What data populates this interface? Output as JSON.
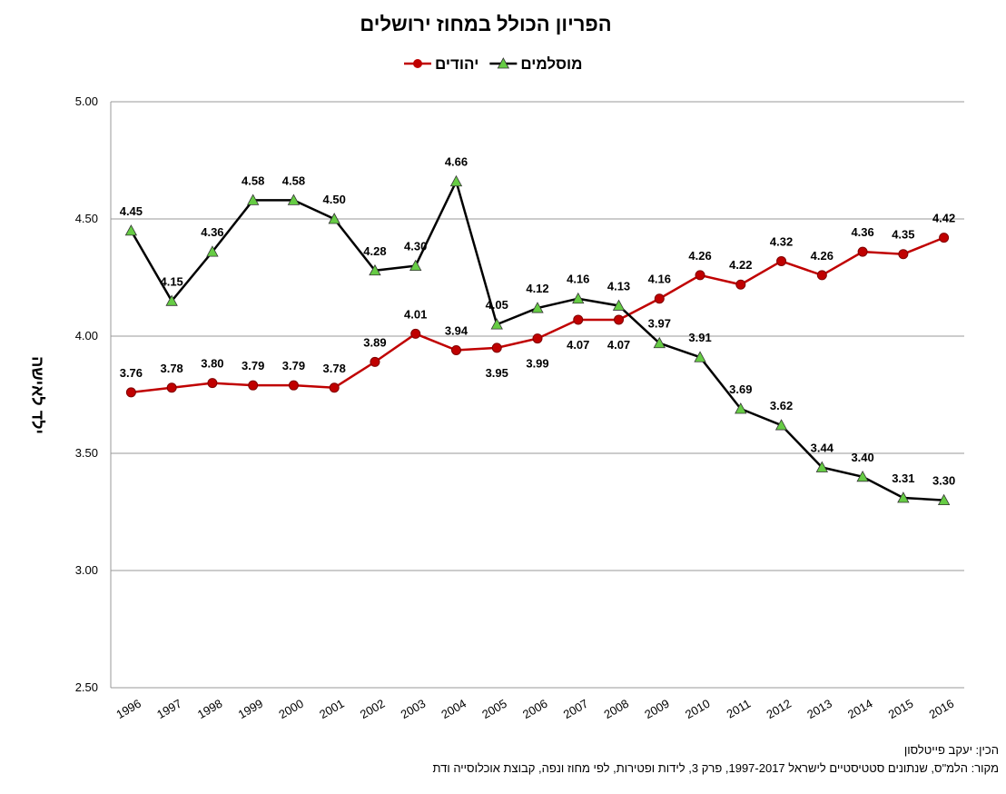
{
  "chart_data": {
    "type": "line",
    "title": "הפריון הכולל במחוז ירושלים",
    "y_label": "ילד לאישה",
    "credit": "הכין: יעקב פייטלסון",
    "source": "מקור: הלמ\"ס, שנתונים סטטיסטיים לישראל 1997-2017, פרק 3, לידות ופטירות, לפי מחוז ונפה, קבוצת אוכלוסייה ודת",
    "categories": [
      "1996",
      "1997",
      "1998",
      "1999",
      "2000",
      "2001",
      "2002",
      "2003",
      "2004",
      "2005",
      "2006",
      "2007",
      "2008",
      "2009",
      "2010",
      "2011",
      "2012",
      "2013",
      "2014",
      "2015",
      "2016"
    ],
    "series": [
      {
        "name": "יהודים",
        "color": "#c00000",
        "marker": "circle",
        "marker_color": "#c00000",
        "values": [
          3.76,
          3.78,
          3.8,
          3.79,
          3.79,
          3.78,
          3.89,
          4.01,
          3.94,
          3.95,
          3.99,
          4.07,
          4.07,
          4.16,
          4.26,
          4.22,
          4.32,
          4.26,
          4.36,
          4.35,
          4.42
        ],
        "value_labels": [
          "3.76",
          "3.78",
          "3.80",
          "3.79",
          "3.79",
          "3.78",
          "3.89",
          "4.01",
          "3.94",
          "3.95",
          "3.99",
          "4.07",
          "4.07",
          "4.16",
          "4.26",
          "4.22",
          "4.32",
          "4.26",
          "4.36",
          "4.35",
          "4.42"
        ]
      },
      {
        "name": "מוסלמים",
        "color": "#000000",
        "marker": "triangle",
        "marker_color": "#66cc44",
        "values": [
          4.45,
          4.15,
          4.36,
          4.58,
          4.58,
          4.5,
          4.28,
          4.3,
          4.66,
          4.05,
          4.12,
          4.16,
          4.13,
          3.97,
          3.91,
          3.69,
          3.62,
          3.44,
          3.4,
          3.31,
          3.3
        ],
        "value_labels": [
          "4.45",
          "4.15",
          "4.36",
          "4.58",
          "4.58",
          "4.50",
          "4.28",
          "4.30",
          "4.66",
          "4.05",
          "4.12",
          "4.16",
          "4.13",
          "3.97",
          "3.91",
          "3.69",
          "3.62",
          "3.44",
          "3.40",
          "3.31",
          "3.30"
        ]
      }
    ],
    "ylim": [
      2.5,
      5
    ],
    "yticks": [
      {
        "value": 2.5,
        "label": "2.50"
      },
      {
        "value": 3,
        "label": "3.00"
      },
      {
        "value": 3.5,
        "label": "3.50"
      },
      {
        "value": 4,
        "label": "4.00"
      },
      {
        "value": 4.5,
        "label": "4.50"
      },
      {
        "value": 5,
        "label": "5.00"
      }
    ],
    "grid": true
  }
}
